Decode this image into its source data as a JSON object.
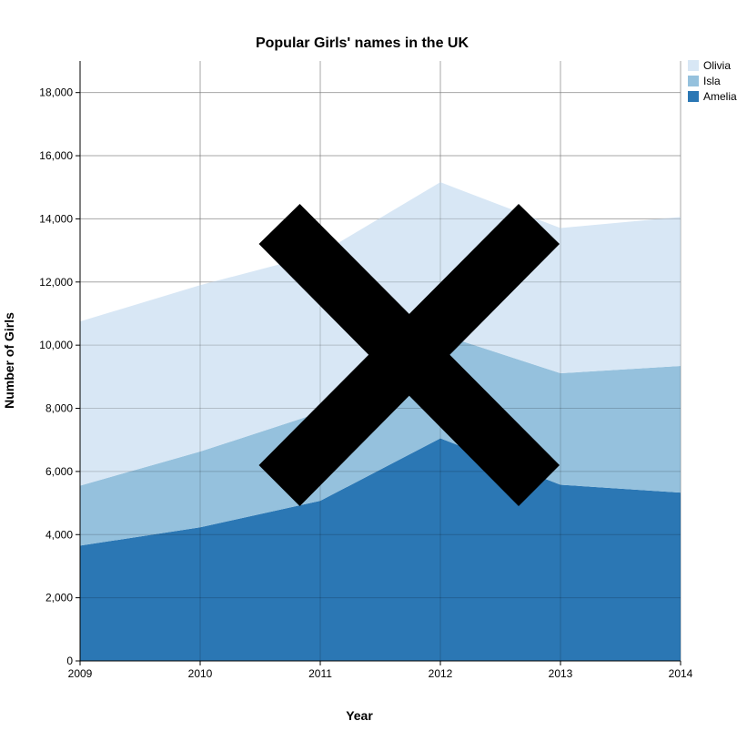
{
  "chart_data": {
    "type": "area",
    "stacked": true,
    "title": "Popular Girls' names in the UK",
    "xlabel": "Year",
    "ylabel": "Number of Girls",
    "x": [
      "2009",
      "2010",
      "2011",
      "2012",
      "2013",
      "2014"
    ],
    "ylim": [
      0,
      19000
    ],
    "yticks": [
      0,
      2000,
      4000,
      6000,
      8000,
      10000,
      12000,
      14000,
      16000,
      18000
    ],
    "ytick_labels": [
      "0",
      "2,000",
      "4,000",
      "6,000",
      "8,000",
      "10,000",
      "12,000",
      "14,000",
      "16,000",
      "18,000"
    ],
    "grid": true,
    "legend_position": "top-right",
    "series": [
      {
        "name": "Amelia",
        "color": "#2b77b4",
        "values": [
          3650,
          4230,
          5070,
          7050,
          5580,
          5330
        ]
      },
      {
        "name": "Isla",
        "color": "#95c1dd",
        "values": [
          1900,
          2400,
          2800,
          3300,
          3530,
          4010
        ]
      },
      {
        "name": "Olivia",
        "color": "#d8e7f5",
        "values": [
          5200,
          5270,
          5030,
          4810,
          4600,
          4720
        ]
      }
    ],
    "legend_order": [
      "Olivia",
      "Isla",
      "Amelia"
    ],
    "overlay": {
      "shape": "x-cross",
      "color": "#000000"
    }
  }
}
